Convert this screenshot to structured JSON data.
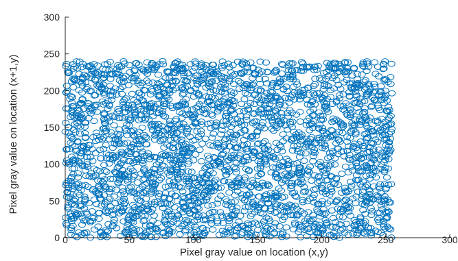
{
  "chart_data": {
    "type": "scatter",
    "xlabel": "Pixel gray value on location (x,y)",
    "ylabel": "Pixel gray value on location (x+1,y)",
    "xlim": [
      0,
      300
    ],
    "ylim": [
      0,
      300
    ],
    "xticks": [
      0,
      50,
      100,
      150,
      200,
      250,
      300
    ],
    "yticks": [
      0,
      50,
      100,
      150,
      200,
      250,
      300
    ],
    "grid": false,
    "marker": "open-circle",
    "marker_color": "#0072BD",
    "series": [
      {
        "point_count_approx": 2800,
        "x_range": [
          0,
          255
        ],
        "y_range": [
          0,
          240
        ],
        "distribution": "uniform"
      }
    ]
  }
}
